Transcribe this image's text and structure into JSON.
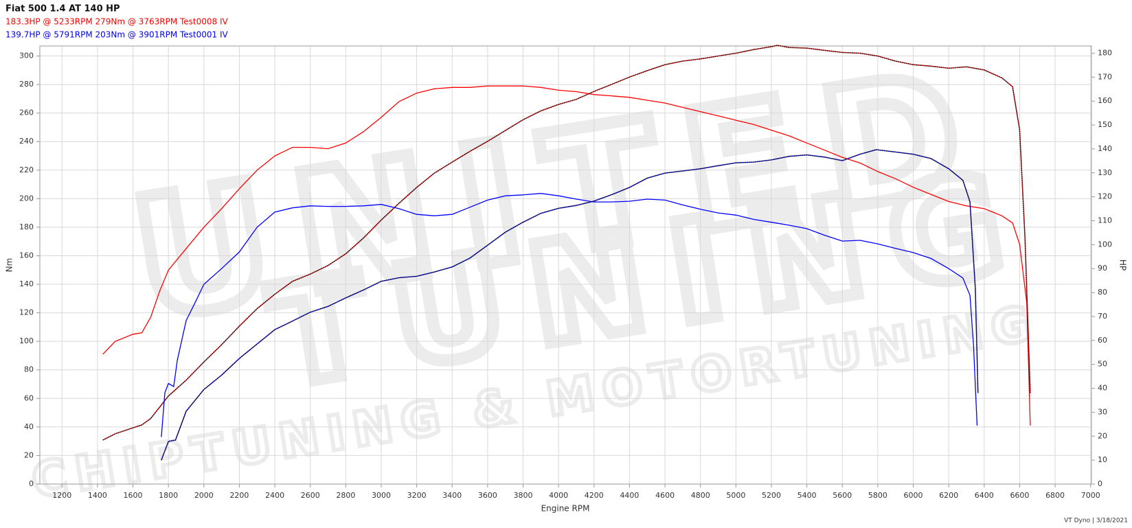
{
  "chart_data": {
    "type": "line",
    "title": "Fiat 500 1.4 AT 140 HP",
    "legend": [
      {
        "label": "183.3HP @  5233RPM  279Nm @ 3763RPM  Test0008 IV",
        "color": "#ff0000"
      },
      {
        "label": "139.7HP @  5791RPM  203Nm @ 3901RPM  Test0001 IV",
        "color": "#0000ff"
      }
    ],
    "x_label": "Engine RPM",
    "y_label": "Nm",
    "y2_label": "HP",
    "footer": "VT Dyno | 3/18/2021",
    "watermark": [
      "UNITED",
      "TUNING",
      "CHIPTUNING & MOTORTUNING"
    ],
    "grid": true,
    "xlim": [
      1075,
      7005
    ],
    "ylim": [
      0,
      307
    ],
    "y2lim": [
      0,
      183
    ],
    "xticks": [
      1200,
      1400,
      1600,
      1800,
      2000,
      2200,
      2400,
      2600,
      2800,
      3000,
      3200,
      3400,
      3600,
      3800,
      4000,
      4200,
      4400,
      4600,
      4800,
      5000,
      5200,
      5400,
      5600,
      5800,
      6000,
      6200,
      6400,
      6600,
      6800,
      7000
    ],
    "yticks": [
      0,
      20,
      40,
      60,
      80,
      100,
      120,
      140,
      160,
      180,
      200,
      220,
      240,
      260,
      280,
      300
    ],
    "y2ticks": [
      0,
      10,
      20,
      30,
      40,
      50,
      60,
      70,
      80,
      90,
      100,
      110,
      120,
      130,
      140,
      150,
      160,
      170,
      180
    ],
    "series": [
      {
        "color": "#ff0000",
        "style": "solid",
        "axis": "y",
        "x": [
          1430,
          1500,
          1600,
          1650,
          1700,
          1750,
          1800,
          1900,
          2000,
          2100,
          2200,
          2300,
          2400,
          2500,
          2600,
          2700,
          2800,
          2900,
          3000,
          3100,
          3200,
          3300,
          3400,
          3500,
          3600,
          3700,
          3800,
          3900,
          4000,
          4100,
          4200,
          4300,
          4400,
          4500,
          4600,
          4700,
          4800,
          4900,
          5000,
          5100,
          5200,
          5300,
          5400,
          5500,
          5600,
          5700,
          5800,
          5900,
          6000,
          6100,
          6200,
          6300,
          6400,
          6500,
          6560,
          6600,
          6640,
          6660
        ],
        "values": [
          91,
          100,
          105,
          106,
          117,
          135,
          150,
          165,
          180,
          193,
          207,
          220,
          230,
          236,
          236,
          235,
          239,
          247,
          257,
          268,
          274,
          277,
          278,
          278,
          279,
          279,
          279,
          278,
          276,
          275,
          273,
          272,
          271,
          269,
          267,
          264,
          261,
          258,
          255,
          252,
          248,
          244,
          239,
          234,
          229,
          225,
          219,
          214,
          208,
          203,
          198,
          195,
          193,
          188,
          183,
          168,
          127,
          41
        ]
      },
      {
        "color": "#ff0000",
        "style": "dotted",
        "axis": "y2",
        "x": [
          1430,
          1500,
          1600,
          1650,
          1700,
          1800,
          1900,
          2000,
          2100,
          2200,
          2300,
          2400,
          2500,
          2600,
          2700,
          2800,
          2900,
          3000,
          3100,
          3200,
          3300,
          3400,
          3500,
          3600,
          3700,
          3800,
          3900,
          4000,
          4100,
          4200,
          4300,
          4400,
          4500,
          4600,
          4700,
          4800,
          4900,
          5000,
          5100,
          5200,
          5233,
          5300,
          5400,
          5500,
          5600,
          5700,
          5800,
          5900,
          6000,
          6100,
          6200,
          6300,
          6400,
          6500,
          6560,
          6600,
          6630,
          6660
        ],
        "values": [
          18.4,
          21,
          23.5,
          24.7,
          27.4,
          36.8,
          43.4,
          51,
          58.2,
          66,
          73.3,
          79.3,
          84.7,
          87.7,
          91.3,
          96.2,
          102.8,
          110.3,
          117.3,
          123.9,
          129.9,
          134.5,
          139,
          143.2,
          147.7,
          152.2,
          155.9,
          158.6,
          160.7,
          164,
          167,
          170,
          172.7,
          175.2,
          176.7,
          177.6,
          178.8,
          180,
          181.5,
          182.7,
          183.3,
          182.4,
          182.1,
          181.2,
          180.3,
          180,
          178.8,
          176.7,
          175.2,
          174.6,
          173.7,
          174.3,
          173,
          169.7,
          166,
          148,
          102.8,
          38
        ]
      },
      {
        "color": "#0000ff",
        "style": "solid",
        "axis": "y",
        "x": [
          1760,
          1780,
          1800,
          1830,
          1850,
          1900,
          1950,
          2000,
          2100,
          2200,
          2300,
          2400,
          2500,
          2600,
          2700,
          2800,
          2900,
          3000,
          3100,
          3200,
          3300,
          3400,
          3500,
          3600,
          3700,
          3800,
          3900,
          4000,
          4100,
          4200,
          4300,
          4400,
          4500,
          4600,
          4700,
          4800,
          4900,
          5000,
          5100,
          5200,
          5300,
          5400,
          5500,
          5600,
          5700,
          5800,
          5900,
          6000,
          6100,
          6200,
          6280,
          6320,
          6340,
          6360
        ],
        "values": [
          33,
          64,
          70.5,
          68.4,
          86.7,
          114.5,
          127,
          140,
          151,
          162.7,
          180,
          190.6,
          193.6,
          195,
          194.6,
          194.6,
          195,
          196,
          193,
          189,
          188,
          189,
          194,
          199,
          202,
          202.7,
          203.7,
          202,
          199.7,
          197.7,
          197.7,
          198.2,
          199.7,
          199,
          195.6,
          192.6,
          190,
          188.5,
          185.5,
          183.5,
          181.4,
          179,
          174.4,
          170.3,
          170.8,
          168.3,
          165.2,
          162.2,
          158.1,
          151,
          144.4,
          132.3,
          97,
          41
        ]
      },
      {
        "color": "#0000ff",
        "style": "dotted",
        "axis": "y2",
        "x": [
          1760,
          1800,
          1840,
          1900,
          2000,
          2100,
          2200,
          2300,
          2400,
          2500,
          2600,
          2700,
          2800,
          2900,
          3000,
          3100,
          3200,
          3300,
          3400,
          3500,
          3600,
          3700,
          3800,
          3900,
          4000,
          4100,
          4200,
          4300,
          4400,
          4500,
          4600,
          4700,
          4800,
          4900,
          5000,
          5100,
          5200,
          5300,
          5400,
          5500,
          5600,
          5700,
          5791,
          5900,
          6000,
          6100,
          6200,
          6280,
          6320,
          6350,
          6365
        ],
        "values": [
          10,
          17.8,
          18.4,
          30.4,
          39.5,
          45.5,
          52.5,
          58.5,
          64.5,
          68.1,
          71.8,
          74.2,
          77.8,
          81.1,
          84.7,
          86.2,
          86.8,
          88.6,
          90.7,
          94.4,
          99.8,
          105.2,
          109.4,
          113.1,
          115.2,
          116.4,
          118.2,
          120.9,
          123.9,
          127.8,
          129.9,
          130.8,
          131.7,
          133,
          134.2,
          134.5,
          135.4,
          136.9,
          137.5,
          136.6,
          135.1,
          137.8,
          139.7,
          138.7,
          137.8,
          136,
          131.7,
          126.9,
          117.9,
          81.7,
          38
        ]
      }
    ]
  }
}
